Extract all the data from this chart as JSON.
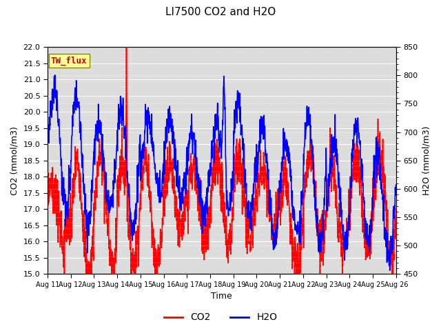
{
  "title": "LI7500 CO2 and H2O",
  "xlabel": "Time",
  "ylabel_left": "CO2 (mmol/m3)",
  "ylabel_right": "H2O (mmol/m3)",
  "annotation": "TW_flux",
  "ylim_left": [
    15.0,
    22.0
  ],
  "ylim_right": [
    450,
    850
  ],
  "yticks_left": [
    15.0,
    15.5,
    16.0,
    16.5,
    17.0,
    17.5,
    18.0,
    18.5,
    19.0,
    19.5,
    20.0,
    20.5,
    21.0,
    21.5,
    22.0
  ],
  "yticks_right": [
    450,
    500,
    550,
    600,
    650,
    700,
    750,
    800,
    850
  ],
  "xtick_labels": [
    "Aug 11",
    "Aug 12",
    "Aug 13",
    "Aug 14",
    "Aug 15",
    "Aug 16",
    "Aug 17",
    "Aug 18",
    "Aug 19",
    "Aug 20",
    "Aug 21",
    "Aug 22",
    "Aug 23",
    "Aug 24",
    "Aug 25",
    "Aug 26"
  ],
  "co2_color": "#FF0000",
  "h2o_color": "#0000FF",
  "background_color": "#DCDCDC",
  "annotation_bg": "#FFFF99",
  "annotation_fg": "#CC0000",
  "line_width": 1.2,
  "figsize": [
    6.4,
    4.8
  ],
  "dpi": 100
}
